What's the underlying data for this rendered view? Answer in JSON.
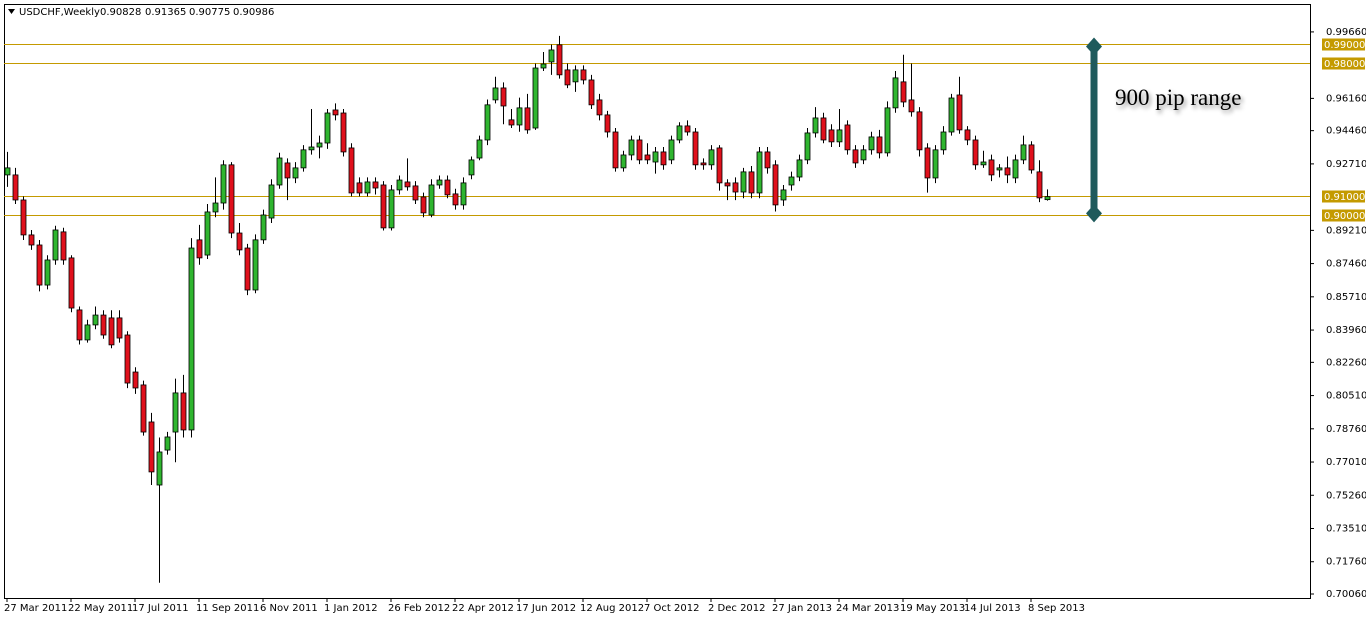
{
  "chart_data": {
    "type": "candlestick",
    "title": "USDCHF,Weekly",
    "annotation": "900 pip range",
    "up_color": "#2fb52f",
    "down_color": "#e0101c",
    "level_color": "#c49a00",
    "arrow_color": "#1e5a5c",
    "ylim": [
      0.6985,
      1.0113
    ],
    "yticks": [
      {
        "value": 0.9966,
        "label": "0.99660"
      },
      {
        "value": 0.9616,
        "label": "0.96160"
      },
      {
        "value": 0.9446,
        "label": "0.94460"
      },
      {
        "value": 0.9271,
        "label": "0.92710"
      },
      {
        "value": 0.8921,
        "label": "0.89210"
      },
      {
        "value": 0.8746,
        "label": "0.87460"
      },
      {
        "value": 0.8571,
        "label": "0.85710"
      },
      {
        "value": 0.8396,
        "label": "0.83960"
      },
      {
        "value": 0.8226,
        "label": "0.82260"
      },
      {
        "value": 0.8051,
        "label": "0.80510"
      },
      {
        "value": 0.7876,
        "label": "0.78760"
      },
      {
        "value": 0.7701,
        "label": "0.77010"
      },
      {
        "value": 0.7526,
        "label": "0.75260"
      },
      {
        "value": 0.7351,
        "label": "0.73510"
      },
      {
        "value": 0.7176,
        "label": "0.71760"
      },
      {
        "value": 0.7006,
        "label": "0.70060"
      }
    ],
    "levels": [
      {
        "value": 0.99,
        "label": "0.99000"
      },
      {
        "value": 0.98,
        "label": "0.98000"
      },
      {
        "value": 0.91,
        "label": "0.91000"
      },
      {
        "value": 0.9,
        "label": "0.90000"
      }
    ],
    "categories": [
      "27 Mar 2011",
      null,
      null,
      null,
      null,
      null,
      null,
      null,
      "22 May 2011",
      null,
      null,
      null,
      null,
      null,
      null,
      null,
      "17 Jul 2011",
      null,
      null,
      null,
      null,
      null,
      null,
      null,
      "11 Sep 2011",
      null,
      null,
      null,
      null,
      null,
      null,
      null,
      "6 Nov 2011",
      null,
      null,
      null,
      null,
      null,
      null,
      null,
      "1 Jan 2012",
      null,
      null,
      null,
      null,
      null,
      null,
      null,
      "26 Feb 2012",
      null,
      null,
      null,
      null,
      null,
      null,
      null,
      "22 Apr 2012",
      null,
      null,
      null,
      null,
      null,
      null,
      null,
      "17 Jun 2012",
      null,
      null,
      null,
      null,
      null,
      null,
      null,
      "12 Aug 2012",
      null,
      null,
      null,
      null,
      null,
      null,
      null,
      "7 Oct 2012",
      null,
      null,
      null,
      null,
      null,
      null,
      null,
      "2 Dec 2012",
      null,
      null,
      null,
      null,
      null,
      null,
      null,
      "27 Jan 2013",
      null,
      null,
      null,
      null,
      null,
      null,
      null,
      "24 Mar 2013",
      null,
      null,
      null,
      null,
      null,
      null,
      null,
      "19 May 2013",
      null,
      null,
      null,
      null,
      null,
      null,
      null,
      "14 Jul 2013",
      null,
      null,
      null,
      null,
      null,
      null,
      null,
      "8 Sep 2013",
      null,
      null
    ],
    "open": [
      0.9213,
      0.9213,
      0.9081,
      0.8897,
      0.8844,
      0.8633,
      0.8765,
      0.8913,
      0.8776,
      0.8502,
      0.8344,
      0.8423,
      0.8475,
      0.846,
      0.846,
      0.837,
      0.8175,
      0.8107,
      0.7912,
      0.758,
      0.7764,
      0.7859,
      0.8065,
      0.787,
      0.8871,
      0.8791,
      0.9018,
      0.9065,
      0.9266,
      0.8907,
      0.8828,
      0.8607,
      0.8871,
      0.8986,
      0.916,
      0.9276,
      0.9197,
      0.925,
      0.9345,
      0.936,
      0.9381,
      0.9555,
      0.9539,
      0.9355,
      0.9171,
      0.9118,
      0.9176,
      0.916,
      0.8934,
      0.9134,
      0.9176,
      0.9155,
      0.9097,
      0.9002,
      0.916,
      0.9186,
      0.9113,
      0.9055,
      0.9213,
      0.9302,
      0.9397,
      0.9608,
      0.9671,
      0.9503,
      0.9476,
      0.9566,
      0.946,
      0.9776,
      0.9808,
      0.9898,
      0.9766,
      0.9703,
      0.9766,
      0.9713,
      0.9608,
      0.9529,
      0.9439,
      0.925,
      0.9318,
      0.9397,
      0.9318,
      0.9281,
      0.9334,
      0.9292,
      0.9397,
      0.9471,
      0.9439,
      0.9276,
      0.9266,
      0.9355,
      0.9171,
      0.9171,
      0.9123,
      0.9229,
      0.9118,
      0.9334,
      0.9266,
      0.9081,
      0.916,
      0.9202,
      0.9292,
      0.9434,
      0.9513,
      0.945,
      0.9387,
      0.9476,
      0.9345,
      0.9292,
      0.9345,
      0.9413,
      0.9329,
      0.9566,
      0.9703,
      0.9608,
      0.9545,
      0.9355,
      0.9197,
      0.9345,
      0.9439,
      0.9634,
      0.945,
      0.9397,
      0.9266,
      0.9292,
      0.9239,
      0.925,
      0.9197,
      0.9292,
      0.9371,
      0.9229,
      0.90828
    ],
    "high": [
      0.9334,
      0.925,
      0.91,
      0.8923,
      0.887,
      0.879,
      0.8945,
      0.8935,
      0.879,
      0.852,
      0.845,
      0.852,
      0.85,
      0.85,
      0.85,
      0.839,
      0.82,
      0.813,
      0.796,
      0.783,
      0.786,
      0.814,
      0.816,
      0.888,
      0.895,
      0.906,
      0.92,
      0.929,
      0.928,
      0.896,
      0.885,
      0.89,
      0.903,
      0.919,
      0.933,
      0.93,
      0.928,
      0.937,
      0.956,
      0.942,
      0.956,
      0.959,
      0.956,
      0.938,
      0.92,
      0.92,
      0.92,
      0.918,
      0.916,
      0.921,
      0.93,
      0.918,
      0.912,
      0.919,
      0.921,
      0.921,
      0.914,
      0.92,
      0.931,
      0.942,
      0.961,
      0.973,
      0.97,
      0.956,
      0.962,
      0.964,
      0.98,
      0.986,
      0.99,
      0.9945,
      0.98,
      0.979,
      0.979,
      0.974,
      0.964,
      0.955,
      0.946,
      0.934,
      0.942,
      0.942,
      0.938,
      0.936,
      0.936,
      0.942,
      0.949,
      0.95,
      0.946,
      0.93,
      0.937,
      0.937,
      0.919,
      0.92,
      0.925,
      0.926,
      0.936,
      0.936,
      0.929,
      0.916,
      0.923,
      0.932,
      0.946,
      0.957,
      0.954,
      0.948,
      0.956,
      0.95,
      0.937,
      0.937,
      0.944,
      0.945,
      0.96,
      0.976,
      0.9846,
      0.98,
      0.957,
      0.938,
      0.937,
      0.947,
      0.964,
      0.973,
      0.947,
      0.942,
      0.934,
      0.932,
      0.927,
      0.931,
      0.932,
      0.942,
      0.939,
      0.929,
      0.91365
    ],
    "low": [
      0.915,
      0.906,
      0.887,
      0.8818,
      0.86,
      0.861,
      0.874,
      0.874,
      0.849,
      0.832,
      0.833,
      0.84,
      0.835,
      0.83,
      0.833,
      0.809,
      0.806,
      0.784,
      0.758,
      0.7065,
      0.774,
      0.77,
      0.783,
      0.783,
      0.874,
      0.877,
      0.899,
      0.903,
      0.888,
      0.879,
      0.858,
      0.859,
      0.885,
      0.896,
      0.914,
      0.908,
      0.917,
      0.923,
      0.932,
      0.93,
      0.935,
      0.95,
      0.931,
      0.91,
      0.91,
      0.91,
      0.911,
      0.892,
      0.892,
      0.911,
      0.913,
      0.906,
      0.899,
      0.899,
      0.914,
      0.909,
      0.903,
      0.903,
      0.919,
      0.929,
      0.937,
      0.959,
      0.948,
      0.946,
      0.944,
      0.943,
      0.945,
      0.976,
      0.974,
      0.972,
      0.967,
      0.965,
      0.969,
      0.956,
      0.95,
      0.941,
      0.923,
      0.923,
      0.929,
      0.927,
      0.927,
      0.922,
      0.924,
      0.927,
      0.938,
      0.942,
      0.924,
      0.924,
      0.924,
      0.913,
      0.908,
      0.908,
      0.909,
      0.909,
      0.909,
      0.922,
      0.902,
      0.905,
      0.913,
      0.918,
      0.927,
      0.941,
      0.938,
      0.936,
      0.936,
      0.932,
      0.925,
      0.927,
      0.932,
      0.93,
      0.931,
      0.954,
      0.957,
      0.952,
      0.931,
      0.912,
      0.917,
      0.932,
      0.942,
      0.943,
      0.937,
      0.924,
      0.925,
      0.918,
      0.92,
      0.917,
      0.917,
      0.927,
      0.922,
      0.907,
      0.90775
    ],
    "close": [
      0.925,
      0.9081,
      0.8897,
      0.8844,
      0.8633,
      0.8765,
      0.8923,
      0.8765,
      0.8512,
      0.8344,
      0.8423,
      0.8475,
      0.837,
      0.8318,
      0.8354,
      0.8117,
      0.8091,
      0.7859,
      0.7649,
      0.7754,
      0.7833,
      0.8065,
      0.787,
      0.8828,
      0.8776,
      0.9018,
      0.9065,
      0.9266,
      0.8907,
      0.8818,
      0.8607,
      0.8871,
      0.9002,
      0.916,
      0.9302,
      0.9197,
      0.925,
      0.9345,
      0.936,
      0.9381,
      0.9539,
      0.9529,
      0.9334,
      0.9118,
      0.9118,
      0.9176,
      0.9144,
      0.8934,
      0.9134,
      0.9186,
      0.915,
      0.9081,
      0.9013,
      0.916,
      0.9186,
      0.9108,
      0.9055,
      0.9171,
      0.9292,
      0.9397,
      0.9582,
      0.9671,
      0.9576,
      0.9476,
      0.9566,
      0.945,
      0.9776,
      0.9797,
      0.9871,
      0.974,
      0.9687,
      0.9766,
      0.9713,
      0.9582,
      0.9529,
      0.9439,
      0.925,
      0.9318,
      0.9397,
      0.9292,
      0.9292,
      0.9334,
      0.9266,
      0.9397,
      0.9471,
      0.9439,
      0.9266,
      0.9266,
      0.9345,
      0.9171,
      0.9155,
      0.9123,
      0.9229,
      0.9118,
      0.9334,
      0.925,
      0.9055,
      0.9134,
      0.9202,
      0.9292,
      0.9434,
      0.9513,
      0.9397,
      0.9387,
      0.945,
      0.9345,
      0.9276,
      0.9345,
      0.9413,
      0.9329,
      0.9566,
      0.9724,
      0.9597,
      0.9545,
      0.9345,
      0.9197,
      0.9345,
      0.9439,
      0.9618,
      0.945,
      0.9397,
      0.9266,
      0.9281,
      0.9213,
      0.925,
      0.9213,
      0.9292,
      0.9371,
      0.9239,
      0.9092,
      0.90986
    ]
  }
}
